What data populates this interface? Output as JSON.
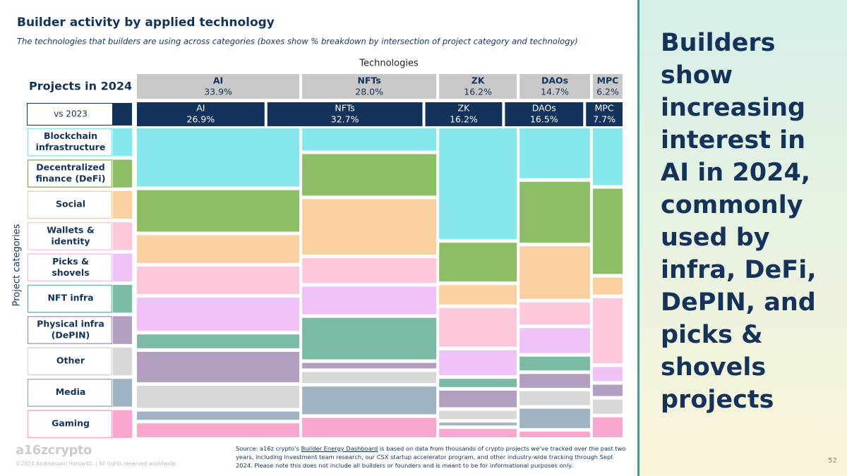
{
  "chart_data": {
    "type": "mosaic",
    "title": "Builder activity by applied technology",
    "subtitle": "The technologies that builders are using across categories (boxes show % breakdown by intersection of project category and technology)",
    "x_axis_label": "Technologies",
    "y_axis_label": "Project categories",
    "row_2024_label": "Projects in 2024",
    "row_2023_label": "vs 2023",
    "technologies": [
      "AI",
      "NFTs",
      "ZK",
      "DAOs",
      "MPC"
    ],
    "share_2024": [
      33.9,
      28.0,
      16.2,
      14.7,
      6.2
    ],
    "value_labels_2024": [
      "33.9%",
      "28.0%",
      "16.2%",
      "14.7%",
      "6.2%"
    ],
    "share_2023": [
      26.9,
      32.7,
      16.2,
      16.5,
      7.7
    ],
    "value_labels_2023": [
      "26.9%",
      "32.7%",
      "16.2%",
      "16.5%",
      "7.7%"
    ],
    "series": [
      {
        "name": "Blockchain infrastructure",
        "color": "#86e8ec",
        "values": [
          21,
          8,
          40,
          18,
          20
        ]
      },
      {
        "name": "Decentralized finance (DeFi)",
        "color": "#8dbd65",
        "values": [
          15,
          15,
          14,
          22,
          30
        ]
      },
      {
        "name": "Social",
        "color": "#fbd0a0",
        "values": [
          10,
          20,
          7,
          19,
          6
        ]
      },
      {
        "name": "Wallets & identity",
        "color": "#fdc8dc",
        "values": [
          10,
          9,
          14,
          8,
          23
        ]
      },
      {
        "name": "Picks & shovels",
        "color": "#efc2f8",
        "values": [
          12,
          10,
          9,
          9,
          5
        ]
      },
      {
        "name": "NFT infra",
        "color": "#7cbaa8",
        "values": [
          5,
          15,
          3,
          5,
          0
        ]
      },
      {
        "name": "Physical infra (DePIN)",
        "color": "#b29fc0",
        "values": [
          11,
          2,
          6,
          5,
          4
        ]
      },
      {
        "name": "Other",
        "color": "#d8d8d8",
        "values": [
          8,
          4,
          3,
          5,
          5
        ]
      },
      {
        "name": "Media",
        "color": "#9fb3c2",
        "values": [
          3,
          10,
          1,
          7,
          0
        ]
      },
      {
        "name": "Gaming",
        "color": "#f9a6cf",
        "values": [
          5,
          7,
          3,
          2,
          7
        ]
      }
    ]
  },
  "headline": "Builders show increasing interest in AI in 2024, commonly used by infra, DeFi, DePIN, and picks & shovels projects",
  "footer": {
    "logo": "a16zcrypto",
    "copyright": "©2024 Andreessen Horowitz. | All rights reserved worldwide.",
    "source_before": "Source: a16z crypto’s ",
    "source_link": "Builder Energy Dashboard",
    "source_after": " is based on data from thousands of crypto projects we’ve tracked over the past two years, including investment team research, our CSX startup accelerator program, and other industry-wide tracking through Sept 2024. Please note this does not include all builders or founders and is meant to be for informational purposes only.",
    "page": "52"
  }
}
